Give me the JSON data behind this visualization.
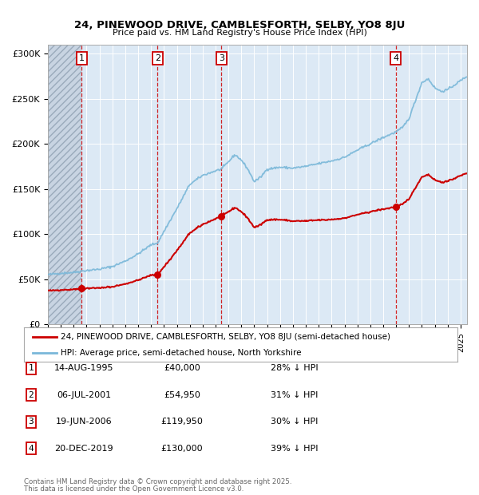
{
  "title1": "24, PINEWOOD DRIVE, CAMBLESFORTH, SELBY, YO8 8JU",
  "title2": "Price paid vs. HM Land Registry's House Price Index (HPI)",
  "background_color": "#dce9f5",
  "plot_bg_color": "#dce9f5",
  "hpi_color": "#7ab8d9",
  "price_color": "#cc0000",
  "transactions": [
    {
      "label": "1",
      "date_str": "14-AUG-1995",
      "date_num": 1995.62,
      "price": 40000
    },
    {
      "label": "2",
      "date_str": "06-JUL-2001",
      "date_num": 2001.51,
      "price": 54950
    },
    {
      "label": "3",
      "date_str": "19-JUN-2006",
      "date_num": 2006.46,
      "price": 119950
    },
    {
      "label": "4",
      "date_str": "20-DEC-2019",
      "date_num": 2019.97,
      "price": 130000
    }
  ],
  "transaction_labels": [
    {
      "num": "1",
      "date": "14-AUG-1995",
      "price": "£40,000",
      "pct": "28% ↓ HPI"
    },
    {
      "num": "2",
      "date": "06-JUL-2001",
      "price": "£54,950",
      "pct": "31% ↓ HPI"
    },
    {
      "num": "3",
      "date": "19-JUN-2006",
      "price": "£119,950",
      "pct": "30% ↓ HPI"
    },
    {
      "num": "4",
      "date": "20-DEC-2019",
      "price": "£130,000",
      "pct": "39% ↓ HPI"
    }
  ],
  "legend_line1": "24, PINEWOOD DRIVE, CAMBLESFORTH, SELBY, YO8 8JU (semi-detached house)",
  "legend_line2": "HPI: Average price, semi-detached house, North Yorkshire",
  "footer1": "Contains HM Land Registry data © Crown copyright and database right 2025.",
  "footer2": "This data is licensed under the Open Government Licence v3.0.",
  "ylim": [
    0,
    310000
  ],
  "xlim_start": 1993.0,
  "xlim_end": 2025.5,
  "yticks": [
    0,
    50000,
    100000,
    150000,
    200000,
    250000,
    300000
  ],
  "ytick_labels": [
    "£0",
    "£50K",
    "£100K",
    "£150K",
    "£200K",
    "£250K",
    "£300K"
  ]
}
